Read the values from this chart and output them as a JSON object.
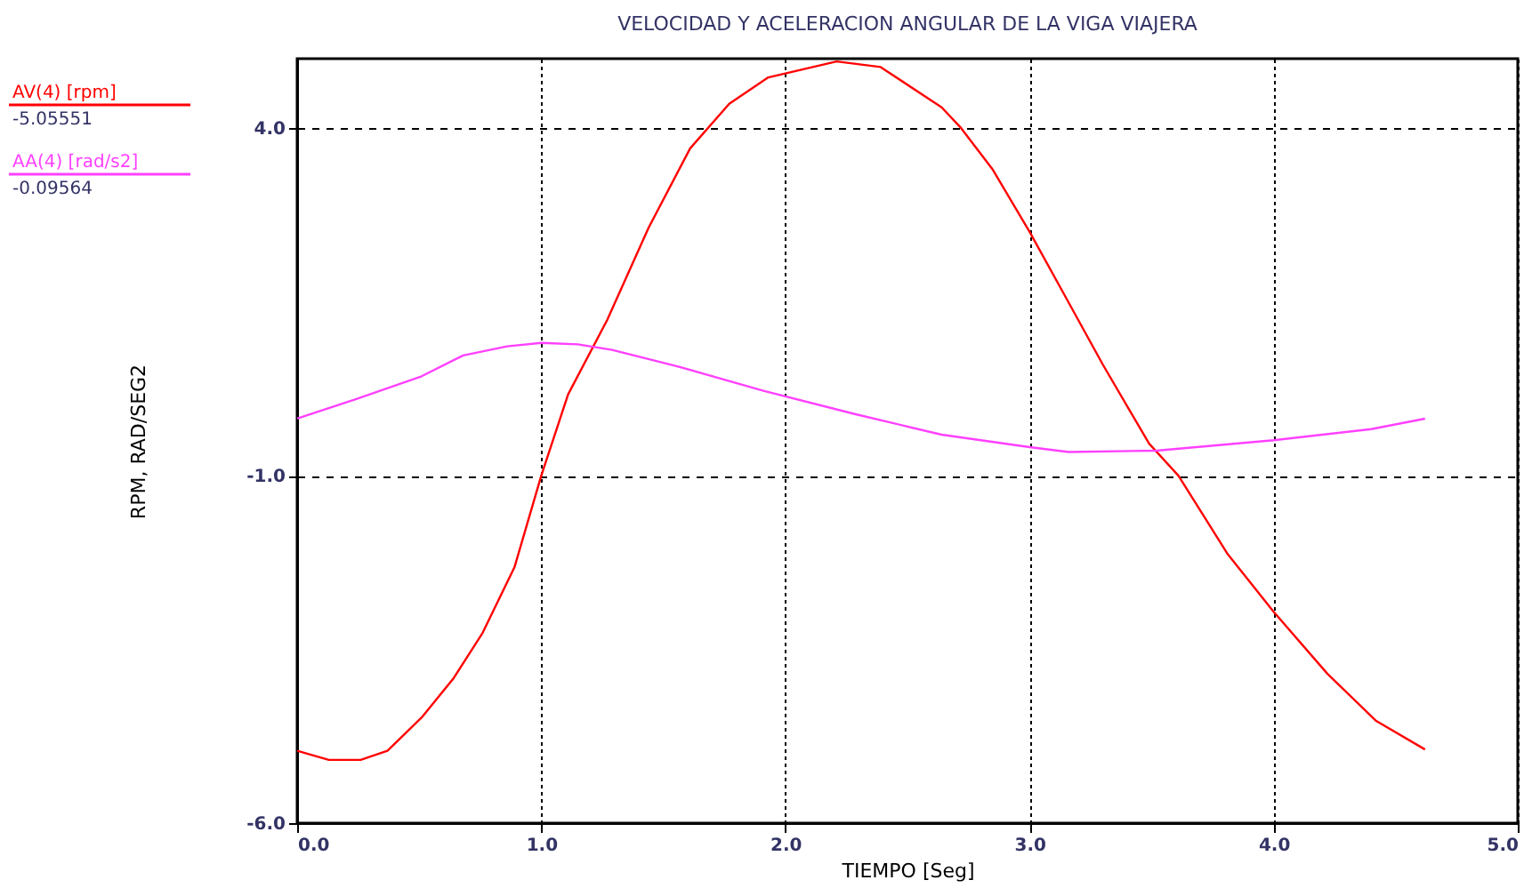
{
  "chart_data": {
    "type": "line",
    "title": "VELOCIDAD Y ACELERACION ANGULAR DE LA VIGA VIAJERA",
    "xlabel": "TIEMPO [Seg]",
    "ylabel": "RPM, RAD/SEG2",
    "xlim": [
      0,
      5
    ],
    "ylim": [
      -6,
      5
    ],
    "xticks": [
      {
        "value": 0,
        "label": "0.0"
      },
      {
        "value": 1,
        "label": "1.0"
      },
      {
        "value": 2,
        "label": "2.0"
      },
      {
        "value": 3,
        "label": "3.0"
      },
      {
        "value": 4,
        "label": "4.0"
      },
      {
        "value": 5,
        "label": "5.0"
      }
    ],
    "yticks": [
      {
        "value": -6,
        "label": "-6.0"
      },
      {
        "value": -1,
        "label": "-1.0"
      },
      {
        "value": 4,
        "label": "4.0"
      }
    ],
    "grid": true,
    "legend": "top left",
    "marker": "none",
    "line_style": "solid",
    "annotations": [
      "-5.05551",
      "-0.09564"
    ],
    "series": [
      {
        "name": "AV(4) [rpm]",
        "color": "#ff0000",
        "x": [
          0,
          0.13,
          0.26,
          0.37,
          0.51,
          0.64,
          0.76,
          0.89,
          1.0,
          1.11,
          1.27,
          1.44,
          1.61,
          1.77,
          1.93,
          2.21,
          2.39,
          2.64,
          2.72,
          2.85,
          3.0,
          3.14,
          3.3,
          3.49,
          3.61,
          3.81,
          4.0,
          4.22,
          4.42,
          4.62
        ],
        "values": [
          -4.96,
          -5.09,
          -5.09,
          -4.96,
          -4.48,
          -3.92,
          -3.26,
          -2.32,
          -1.0,
          0.17,
          1.24,
          2.57,
          3.71,
          4.35,
          4.73,
          4.96,
          4.88,
          4.3,
          4.0,
          3.4,
          2.51,
          1.62,
          0.6,
          -0.54,
          -1.0,
          -2.12,
          -2.96,
          -3.85,
          -4.53,
          -4.94
        ]
      },
      {
        "name": "AA(4) [rad/s2]",
        "color": "#ff40ff",
        "x": [
          0,
          0.24,
          0.51,
          0.68,
          0.86,
          1.0,
          1.15,
          1.29,
          1.55,
          1.91,
          2.28,
          2.64,
          3.0,
          3.16,
          3.52,
          4.0,
          4.4,
          4.62
        ],
        "values": [
          -0.18,
          0.1,
          0.43,
          0.73,
          0.86,
          0.91,
          0.89,
          0.81,
          0.58,
          0.22,
          -0.11,
          -0.41,
          -0.59,
          -0.66,
          -0.64,
          -0.49,
          -0.33,
          -0.18
        ]
      }
    ]
  }
}
